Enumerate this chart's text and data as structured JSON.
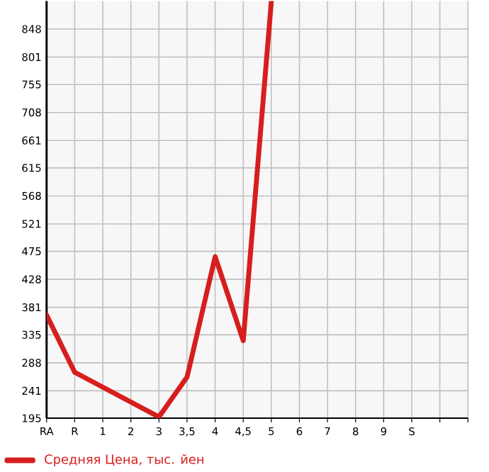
{
  "chart_data": {
    "type": "line",
    "categories": [
      "RA",
      "R",
      "1",
      "2",
      "3",
      "3,5",
      "4",
      "4,5",
      "5",
      "6",
      "7",
      "8",
      "9",
      "S",
      null,
      null
    ],
    "series": [
      {
        "name": "Средняя Цена, тыс. йен",
        "color": "#d71e1e",
        "values": [
          368,
          272,
          null,
          null,
          197,
          264,
          466,
          325,
          894,
          null,
          null,
          null,
          null,
          null,
          null,
          null
        ]
      }
    ],
    "ylim": [
      195,
      895
    ],
    "yticks": [
      195,
      241,
      288,
      335,
      381,
      428,
      475,
      521,
      568,
      615,
      661,
      708,
      755,
      801,
      848
    ],
    "grid": true,
    "legend": "bottom",
    "marker": "none",
    "line_style": "solid"
  }
}
